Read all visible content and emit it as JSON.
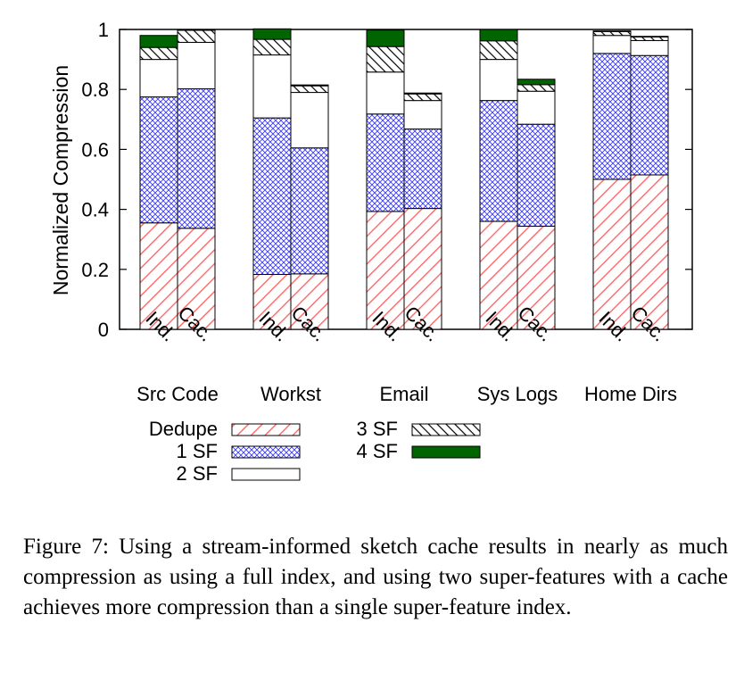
{
  "chart_data": {
    "type": "bar",
    "stacked": true,
    "ylabel": "Normalized Compression",
    "xlabel": "",
    "ylim": [
      0,
      1
    ],
    "yticks": [
      "0",
      "0.2",
      "0.4",
      "0.6",
      "0.8",
      "1"
    ],
    "groups": [
      "Src Code",
      "Workst",
      "Email",
      "Sys Logs",
      "Home Dirs"
    ],
    "bar_labels": [
      "Ind.",
      "Cac."
    ],
    "series": [
      {
        "name": "Dedupe",
        "color": "#ff6060",
        "pattern": "diagonal-red",
        "values": [
          [
            0.355,
            0.337
          ],
          [
            0.183,
            0.185
          ],
          [
            0.393,
            0.403
          ],
          [
            0.36,
            0.344
          ],
          [
            0.5,
            0.515
          ]
        ]
      },
      {
        "name": "1 SF",
        "color": "#3030ff",
        "pattern": "crosshatch-blue",
        "values": [
          [
            0.42,
            0.465
          ],
          [
            0.522,
            0.42
          ],
          [
            0.325,
            0.265
          ],
          [
            0.403,
            0.34
          ],
          [
            0.42,
            0.398
          ]
        ]
      },
      {
        "name": "2 SF",
        "color": "#ffffff",
        "pattern": "solid-white",
        "values": [
          [
            0.125,
            0.155
          ],
          [
            0.21,
            0.185
          ],
          [
            0.14,
            0.095
          ],
          [
            0.137,
            0.11
          ],
          [
            0.06,
            0.05
          ]
        ]
      },
      {
        "name": "3 SF",
        "color": "#000000",
        "pattern": "diagonal-black",
        "values": [
          [
            0.04,
            0.04
          ],
          [
            0.052,
            0.022
          ],
          [
            0.085,
            0.022
          ],
          [
            0.062,
            0.022
          ],
          [
            0.013,
            0.012
          ]
        ]
      },
      {
        "name": "4 SF",
        "color": "#006400",
        "pattern": "solid-green",
        "values": [
          [
            0.04,
            0.003
          ],
          [
            0.035,
            0.003
          ],
          [
            0.055,
            0.003
          ],
          [
            0.038,
            0.018
          ],
          [
            0.002,
            0.002
          ]
        ]
      }
    ],
    "grid": false,
    "legend_position": "bottom"
  },
  "caption": "Figure 7: Using a stream-informed sketch cache results in nearly as much compression as using a full index, and using two super-features with a cache achieves more compression than a single super-feature index."
}
